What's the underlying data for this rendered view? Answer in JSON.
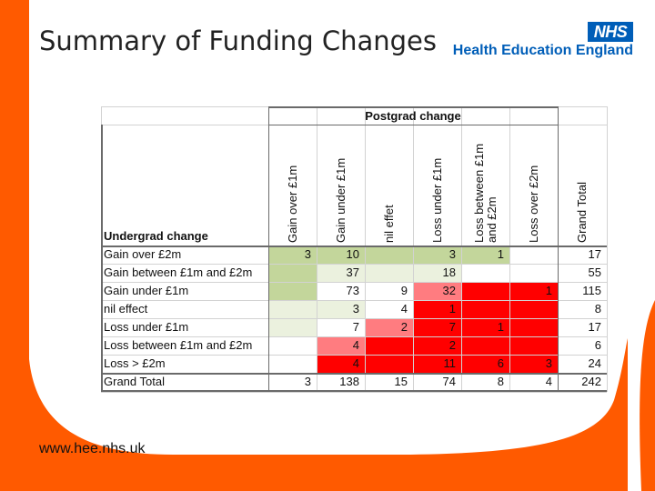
{
  "slide": {
    "title": "Summary of Funding Changes",
    "footer_url": "www.hee.nhs.uk",
    "logo": {
      "badge": "NHS",
      "org": "Health Education England"
    },
    "colors": {
      "orange": "#ff5a00",
      "nhs_blue": "#005eb8",
      "green_dark": "#c3d69b",
      "green_light": "#ebf1de",
      "red_dark": "#ff0000",
      "red_light": "#ff7c80"
    }
  },
  "table": {
    "corner_label": "Undergrad change",
    "group_header": "Postgrad change",
    "columns": [
      "Gain over £1m",
      "Gain under £1m",
      "nil effet",
      "Loss under £1m",
      "Loss between £1m and £2m",
      "Loss over £2m",
      "Grand Total"
    ],
    "rows": [
      {
        "label": "Gain over £2m",
        "cells": [
          "3",
          "10",
          "",
          "3",
          "1",
          "",
          "17"
        ]
      },
      {
        "label": "Gain between £1m and £2m",
        "cells": [
          "",
          "37",
          "",
          "18",
          "",
          "",
          "55"
        ]
      },
      {
        "label": "Gain under £1m",
        "cells": [
          "",
          "73",
          "9",
          "32",
          "",
          "1",
          "115"
        ]
      },
      {
        "label": "nil effect",
        "cells": [
          "",
          "3",
          "4",
          "1",
          "",
          "",
          "8"
        ]
      },
      {
        "label": "Loss under £1m",
        "cells": [
          "",
          "7",
          "2",
          "7",
          "1",
          "",
          "17"
        ]
      },
      {
        "label": "Loss between £1m and £2m",
        "cells": [
          "",
          "4",
          "",
          "2",
          "",
          "",
          "6"
        ]
      },
      {
        "label": "Loss > £2m",
        "cells": [
          "",
          "4",
          "",
          "11",
          "6",
          "3",
          "24"
        ]
      }
    ],
    "total_row": {
      "label": "Grand Total",
      "cells": [
        "3",
        "138",
        "15",
        "74",
        "8",
        "4",
        "242"
      ]
    },
    "shading": [
      [
        "green_dark",
        "green_dark",
        "green_dark",
        "green_dark",
        "green_dark",
        "none"
      ],
      [
        "green_dark",
        "green_light",
        "green_light",
        "green_light",
        "none",
        "none"
      ],
      [
        "green_dark",
        "none",
        "none",
        "red_light",
        "red_dark",
        "red_dark"
      ],
      [
        "green_light",
        "green_light",
        "none",
        "red_dark",
        "red_dark",
        "red_dark"
      ],
      [
        "green_light",
        "none",
        "red_light",
        "red_dark",
        "red_dark",
        "red_dark"
      ],
      [
        "none",
        "red_light",
        "red_dark",
        "red_dark",
        "red_dark",
        "red_dark"
      ],
      [
        "none",
        "red_dark",
        "red_dark",
        "red_dark",
        "red_dark",
        "red_dark"
      ]
    ]
  }
}
